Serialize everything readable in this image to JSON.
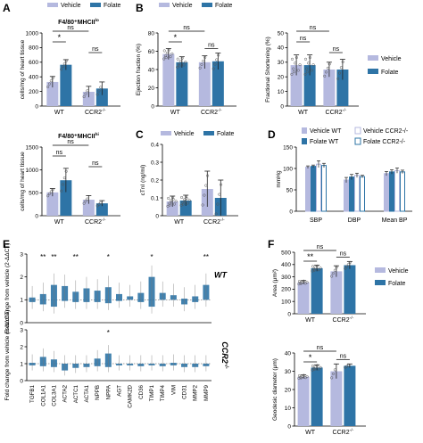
{
  "colors": {
    "vehicle": "#b5b9df",
    "folate": "#2e74a6",
    "axis": "#000000",
    "err": "#222222",
    "pt": "#333333"
  },
  "panel_labels": [
    "A",
    "B",
    "C",
    "D",
    "E",
    "F"
  ],
  "chart_data": [
    {
      "id": "A1",
      "type": "bar",
      "panel": "A",
      "title": "F4/80+MHCII lo",
      "ylabel": "cells/mg of heart tissue",
      "ylim": [
        0,
        1000
      ],
      "yticks": [
        0,
        200,
        400,
        600,
        800,
        1000
      ],
      "categories": [
        "WT",
        "CCR2-/-"
      ],
      "legend": [
        "Vehicle",
        "Folate"
      ],
      "series": [
        {
          "name": "Vehicle",
          "values": [
            330,
            195
          ],
          "err": [
            75,
            75
          ]
        },
        {
          "name": "Folate",
          "values": [
            565,
            240
          ],
          "err": [
            70,
            90
          ]
        }
      ],
      "annotations": [
        {
          "text": "*",
          "between": "WT Vehicle - WT Folate"
        },
        {
          "text": "ns",
          "between": "WT Vehicle - CCR2 Vehicle"
        },
        {
          "text": "ns",
          "between": "CCR2 Vehicle - CCR2 Folate"
        }
      ]
    },
    {
      "id": "A2",
      "type": "bar",
      "panel": "A",
      "title": "F4/80+MHCII hi",
      "ylabel": "cells/mg of heart tissue",
      "ylim": [
        0,
        1500
      ],
      "yticks": [
        0,
        500,
        1000,
        1500
      ],
      "categories": [
        "WT",
        "CCR2-/-"
      ],
      "series": [
        {
          "name": "Vehicle",
          "values": [
            510,
            350
          ],
          "err": [
            85,
            90
          ]
        },
        {
          "name": "Folate",
          "values": [
            775,
            270
          ],
          "err": [
            260,
            60
          ]
        }
      ],
      "annotations": [
        {
          "text": "ns"
        },
        {
          "text": "ns"
        },
        {
          "text": "ns"
        }
      ]
    },
    {
      "id": "B1",
      "type": "bar",
      "panel": "B",
      "ylabel": "Ejection fraction (%)",
      "ylim": [
        0,
        80
      ],
      "yticks": [
        0,
        20,
        40,
        60,
        80
      ],
      "categories": [
        "WT",
        "CCR2-/-"
      ],
      "legend": [
        "Vehicle",
        "Folate"
      ],
      "series": [
        {
          "name": "Vehicle",
          "values": [
            57,
            48
          ],
          "err": [
            6,
            7
          ]
        },
        {
          "name": "Folate",
          "values": [
            48,
            49
          ],
          "err": [
            6,
            9
          ]
        }
      ],
      "annotations": [
        {
          "text": "*"
        },
        {
          "text": "ns"
        },
        {
          "text": "ns"
        }
      ]
    },
    {
      "id": "B2",
      "type": "bar",
      "panel": "B",
      "ylabel": "Fractional Shortening (%)",
      "ylim": [
        0,
        50
      ],
      "yticks": [
        0,
        10,
        20,
        30,
        40,
        50
      ],
      "categories": [
        "WT",
        "CCR2-/-"
      ],
      "legend": [
        "Vehicle",
        "Folate"
      ],
      "series": [
        {
          "name": "Vehicle",
          "values": [
            28,
            25
          ],
          "err": [
            7,
            5
          ]
        },
        {
          "name": "Folate",
          "values": [
            28,
            25
          ],
          "err": [
            7,
            7
          ]
        }
      ],
      "annotations": [
        {
          "text": "ns"
        },
        {
          "text": "ns"
        },
        {
          "text": "ns"
        }
      ]
    },
    {
      "id": "C",
      "type": "bar",
      "panel": "C",
      "ylabel": "cTnI (ng/ml)",
      "ylim": [
        0,
        0.4
      ],
      "yticks": [
        0,
        0.1,
        0.2,
        0.3,
        0.4
      ],
      "categories": [
        "WT",
        "CCR2-/-"
      ],
      "legend": [
        "Vehicle",
        "Folate"
      ],
      "series": [
        {
          "name": "Vehicle",
          "values": [
            0.08,
            0.15
          ],
          "err": [
            0.03,
            0.1
          ]
        },
        {
          "name": "Folate",
          "values": [
            0.085,
            0.1
          ],
          "err": [
            0.03,
            0.1
          ]
        }
      ]
    },
    {
      "id": "D",
      "type": "bar",
      "panel": "D",
      "ylabel": "mmHg",
      "ylim": [
        0,
        150
      ],
      "yticks": [
        0,
        50,
        100,
        150
      ],
      "categories": [
        "SBP",
        "DBP",
        "Mean BP"
      ],
      "legend": [
        "Vehicle WT",
        "Folate WT",
        "Vehicle CCR2-/-",
        "Folate CCR2-/-"
      ],
      "series": [
        {
          "name": "Vehicle WT",
          "values": [
            103,
            73,
            88
          ],
          "err": [
            3,
            6,
            5
          ]
        },
        {
          "name": "Folate WT",
          "values": [
            105,
            80,
            92
          ],
          "err": [
            3,
            6,
            5
          ]
        },
        {
          "name": "Vehicle CCR2-/-",
          "values": [
            110,
            84,
            95
          ],
          "err": [
            8,
            5,
            6
          ]
        },
        {
          "name": "Folate CCR2-/-",
          "values": [
            107,
            81,
            92
          ],
          "err": [
            5,
            3,
            4
          ]
        }
      ]
    },
    {
      "id": "E1",
      "type": "bar",
      "panel": "E",
      "group": "WT",
      "ylabel": "Fold change from vehicle (2-ΔΔCT)",
      "ylim": [
        0,
        3
      ],
      "yticks": [
        0,
        1,
        2,
        3
      ],
      "categories": [
        "TGFB1",
        "COL1A1",
        "COL3A1",
        "ACTA2",
        "ACTC1",
        "ACTA1",
        "NPPB",
        "NPPA",
        "AGT",
        "CAMK2D",
        "CD36",
        "TIMP1",
        "TIMP4",
        "VIM",
        "CD31",
        "MMP2",
        "MMP9"
      ],
      "values": [
        [
          0.9,
          1.1
        ],
        [
          0.8,
          1.25
        ],
        [
          0.7,
          1.65
        ],
        [
          0.95,
          1.6
        ],
        [
          0.9,
          1.35
        ],
        [
          0.9,
          1.5
        ],
        [
          0.9,
          1.4
        ],
        [
          0.85,
          1.55
        ],
        [
          0.95,
          1.25
        ],
        [
          1.0,
          1.15
        ],
        [
          0.9,
          1.3
        ],
        [
          0.7,
          2.0
        ],
        [
          1.0,
          1.3
        ],
        [
          1.0,
          1.2
        ],
        [
          0.8,
          1.05
        ],
        [
          0.9,
          1.15
        ],
        [
          1.0,
          1.65
        ]
      ],
      "stars": [
        "",
        "**",
        "**",
        "",
        "**",
        "",
        "",
        "*",
        "",
        "",
        "",
        "*",
        "",
        "",
        "",
        "",
        "**"
      ]
    },
    {
      "id": "E2",
      "type": "bar",
      "panel": "E",
      "group": "CCR2-/-",
      "ylabel": "Fold change from vehicle (2-ΔΔCT)",
      "ylim": [
        0,
        3
      ],
      "yticks": [
        0,
        1,
        2,
        3
      ],
      "categories": [
        "TGFB1",
        "COL1A1",
        "COL3A1",
        "ACTA2",
        "ACTC1",
        "ACTA1",
        "NPPB",
        "NPPA",
        "AGT",
        "CAMK2D",
        "CD36",
        "TIMP1",
        "TIMP4",
        "VIM",
        "CD31",
        "MMP2",
        "MMP9"
      ],
      "values": [
        [
          0.9,
          1.05
        ],
        [
          0.85,
          1.4
        ],
        [
          0.8,
          1.25
        ],
        [
          0.6,
          1.0
        ],
        [
          0.75,
          1.0
        ],
        [
          0.8,
          1.0
        ],
        [
          0.85,
          1.3
        ],
        [
          0.8,
          1.6
        ],
        [
          0.9,
          1.0
        ],
        [
          0.9,
          1.0
        ],
        [
          0.85,
          1.0
        ],
        [
          0.9,
          1.0
        ],
        [
          0.85,
          1.0
        ],
        [
          0.9,
          1.05
        ],
        [
          0.8,
          1.0
        ],
        [
          0.8,
          1.0
        ],
        [
          0.85,
          1.0
        ]
      ],
      "stars": [
        "",
        "",
        "",
        "",
        "",
        "",
        "",
        "*",
        "",
        "",
        "",
        "",
        "",
        "",
        "",
        "",
        ""
      ]
    },
    {
      "id": "F1",
      "type": "bar",
      "panel": "F",
      "ylabel": "Area (μm²)",
      "ylim": [
        0,
        500
      ],
      "yticks": [
        0,
        100,
        200,
        300,
        400,
        500
      ],
      "categories": [
        "WT",
        "CCR2-/-"
      ],
      "legend": [
        "Vehicle",
        "Folate"
      ],
      "series": [
        {
          "name": "Vehicle",
          "values": [
            255,
            345
          ],
          "err": [
            15,
            45
          ]
        },
        {
          "name": "Folate",
          "values": [
            370,
            395
          ],
          "err": [
            25,
            30
          ]
        }
      ],
      "annotations": [
        {
          "text": "**"
        },
        {
          "text": "ns"
        },
        {
          "text": "ns"
        }
      ]
    },
    {
      "id": "F2",
      "type": "bar",
      "panel": "F",
      "ylabel": "Geodesic diameter (μm)",
      "ylim": [
        0,
        40
      ],
      "yticks": [
        0,
        10,
        20,
        30,
        40
      ],
      "categories": [
        "WT",
        "CCR2-/-"
      ],
      "series": [
        {
          "name": "Vehicle",
          "values": [
            27,
            30
          ],
          "err": [
            1,
            4
          ]
        },
        {
          "name": "Folate",
          "values": [
            32,
            33
          ],
          "err": [
            1.5,
            1
          ]
        }
      ],
      "annotations": [
        {
          "text": "*"
        },
        {
          "text": "ns"
        },
        {
          "text": "ns"
        }
      ]
    }
  ],
  "texts": {
    "A1_title": "F4/80⁺MHCII",
    "A1_title_sup": "lo",
    "A2_title": "F4/80⁺MHCII",
    "A2_title_sup": "hi",
    "wt": "WT",
    "ccr2": "CCR2",
    "ccr2_sup": "-/-",
    "E_wt": "WT",
    "E_ccr2": "CCR2",
    "E_ccr2_sup": "-/-"
  }
}
